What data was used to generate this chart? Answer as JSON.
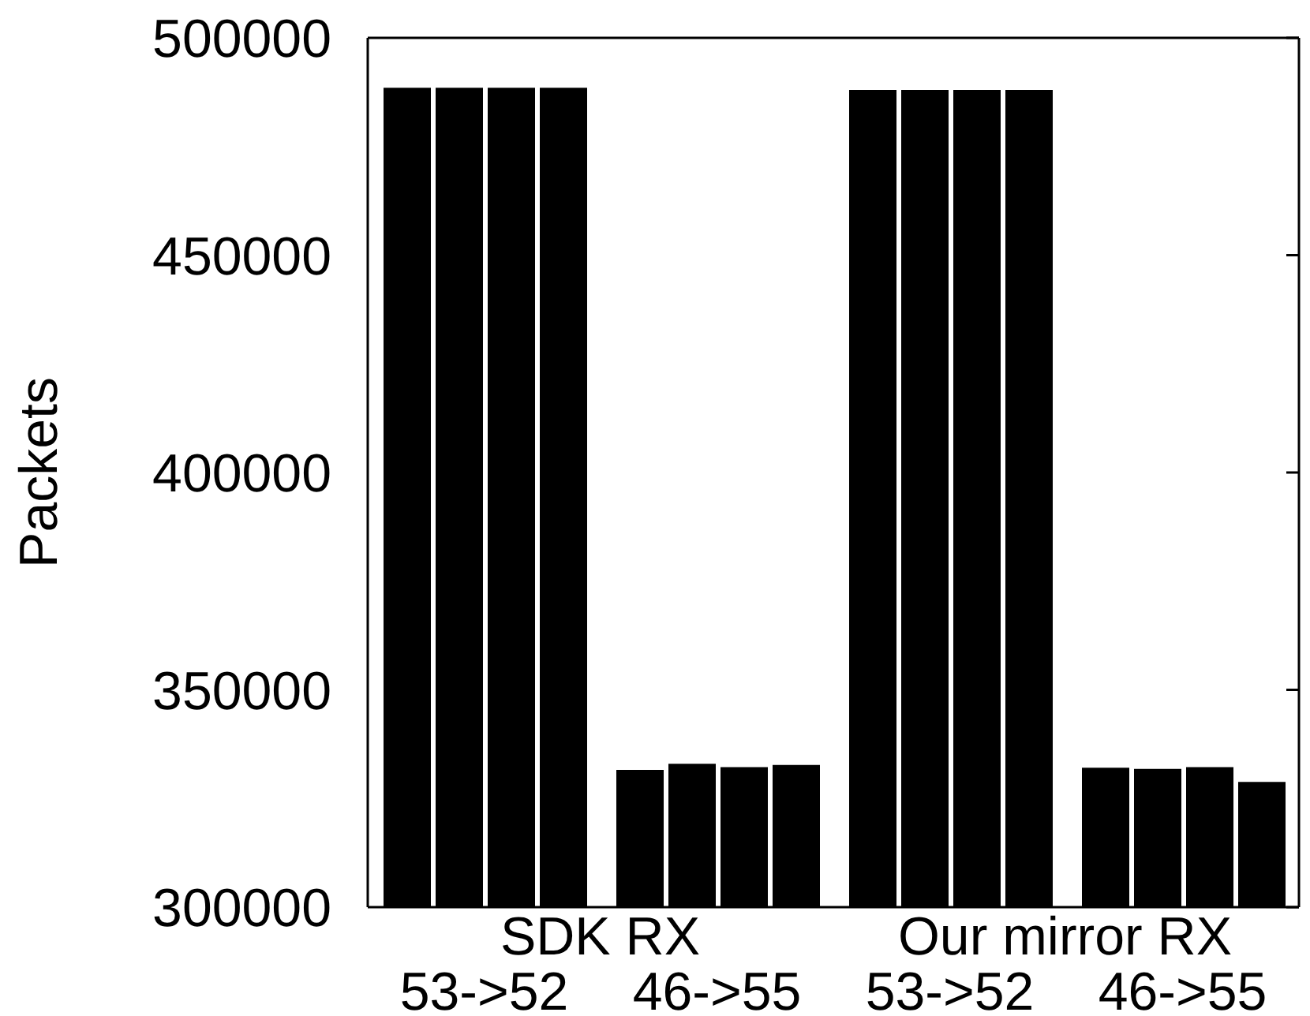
{
  "chart_data": {
    "type": "bar",
    "ylabel": "Packets",
    "categories": [
      "53->52",
      "46->55",
      "53->52",
      "46->55"
    ],
    "series": [
      {
        "color": "#000000",
        "values": [
          488500,
          331600,
          488000,
          332100
        ]
      },
      {
        "color": "#000000",
        "values": [
          488500,
          333000,
          488000,
          331800
        ]
      },
      {
        "color": "#000000",
        "values": [
          488500,
          332200,
          488000,
          332200
        ]
      },
      {
        "color": "#000000",
        "values": [
          488500,
          332700,
          488000,
          328800
        ]
      }
    ],
    "ylim": [
      300000,
      500000
    ],
    "yticks": [
      300000,
      350000,
      400000,
      450000,
      500000
    ],
    "annotations": [
      "SDK RX",
      "Our mirror RX"
    ]
  }
}
